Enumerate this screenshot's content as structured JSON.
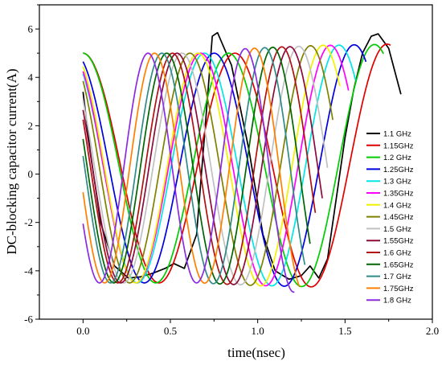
{
  "chart_data": {
    "type": "line",
    "title": "",
    "xlabel": "time(nsec)",
    "ylabel": "DC-blocking capacitor current(A)",
    "xlim": [
      -0.25,
      2.0
    ],
    "ylim": [
      -6,
      7
    ],
    "xticks": [
      0.0,
      0.5,
      1.0,
      1.5,
      2.0
    ],
    "xtick_labels": [
      "0.0",
      "0.5",
      "1.0",
      "1.5",
      "2.0"
    ],
    "yticks": [
      -6,
      -4,
      -2,
      0,
      2,
      4,
      6
    ],
    "ytick_labels": [
      "-6",
      "-4",
      "-2",
      "0",
      "2",
      "4",
      "6"
    ],
    "grid": false,
    "legend_position": "right",
    "series": [
      {
        "name": "1.1  GHz",
        "color": "#000000",
        "freq": 1.1,
        "x_end": 1.82,
        "points": [
          [
            0.0,
            3.4
          ],
          [
            0.04,
            1.0
          ],
          [
            0.1,
            -2.0
          ],
          [
            0.18,
            -3.8
          ],
          [
            0.26,
            -4.3
          ],
          [
            0.33,
            -4.25
          ],
          [
            0.4,
            -4.1
          ],
          [
            0.47,
            -3.9
          ],
          [
            0.52,
            -3.7
          ],
          [
            0.58,
            -3.9
          ],
          [
            0.65,
            -2.5
          ],
          [
            0.7,
            2.0
          ],
          [
            0.74,
            5.7
          ],
          [
            0.77,
            5.85
          ],
          [
            0.85,
            4.5
          ],
          [
            0.95,
            1.0
          ],
          [
            1.03,
            -2.5
          ],
          [
            1.1,
            -4.0
          ],
          [
            1.18,
            -4.35
          ],
          [
            1.25,
            -4.2
          ],
          [
            1.3,
            -3.8
          ],
          [
            1.35,
            -4.3
          ],
          [
            1.4,
            -3.5
          ],
          [
            1.45,
            -1.0
          ],
          [
            1.5,
            1.5
          ],
          [
            1.55,
            3.5
          ],
          [
            1.6,
            5.0
          ],
          [
            1.65,
            5.7
          ],
          [
            1.69,
            5.8
          ],
          [
            1.75,
            5.2
          ],
          [
            1.82,
            3.3
          ]
        ]
      },
      {
        "name": "1.15GHz",
        "color": "#e00000",
        "freq": 1.15,
        "x_end": 1.76,
        "points": [
          [
            0.0,
            4.8
          ]
        ]
      },
      {
        "name": "1.2  GHz",
        "color": "#00cc00",
        "freq": 1.2,
        "x_end": 1.72,
        "points": [
          [
            0.0,
            5.3
          ]
        ]
      },
      {
        "name": "1.25GHz",
        "color": "#0000e0",
        "freq": 1.25,
        "x_end": 1.62,
        "points": [
          [
            0.0,
            4.4
          ]
        ]
      },
      {
        "name": "1.3  GHz",
        "color": "#00e5e5",
        "freq": 1.3,
        "x_end": 1.56,
        "points": [
          [
            0.0,
            3.9
          ]
        ]
      },
      {
        "name": "1.35GHz",
        "color": "#ff00ff",
        "freq": 1.35,
        "x_end": 1.52,
        "points": [
          [
            0.0,
            4.0
          ]
        ]
      },
      {
        "name": "1.4  GHz",
        "color": "#f2f200",
        "freq": 1.4,
        "x_end": 1.47,
        "points": [
          [
            0.0,
            4.2
          ]
        ]
      },
      {
        "name": "1.45GHz",
        "color": "#808000",
        "freq": 1.45,
        "x_end": 1.43,
        "points": [
          [
            0.0,
            3.6
          ]
        ]
      },
      {
        "name": "1.5  GHz",
        "color": "#c0c0c0",
        "freq": 1.5,
        "x_end": 1.4,
        "points": [
          [
            0.0,
            2.8
          ]
        ]
      },
      {
        "name": "1.55GHz",
        "color": "#8b0a3a",
        "freq": 1.55,
        "x_end": 1.37,
        "points": [
          [
            0.0,
            2.4
          ]
        ]
      },
      {
        "name": "1.6  GHz",
        "color": "#b01010",
        "freq": 1.6,
        "x_end": 1.33,
        "points": [
          [
            0.0,
            2.0
          ]
        ]
      },
      {
        "name": "1.65GHz",
        "color": "#006400",
        "freq": 1.65,
        "x_end": 1.3,
        "points": [
          [
            0.0,
            1.2
          ]
        ]
      },
      {
        "name": "1.7  GHz",
        "color": "#2e8b87",
        "freq": 1.7,
        "x_end": 1.27,
        "points": [
          [
            0.0,
            0.5
          ]
        ]
      },
      {
        "name": "1.75GHz",
        "color": "#ff8000",
        "freq": 1.75,
        "x_end": 1.24,
        "points": [
          [
            0.0,
            -1.0
          ]
        ]
      },
      {
        "name": "1.8  GHz",
        "color": "#8a2be2",
        "freq": 1.8,
        "x_end": 1.21,
        "points": [
          [
            0.0,
            -2.3
          ]
        ]
      }
    ]
  }
}
